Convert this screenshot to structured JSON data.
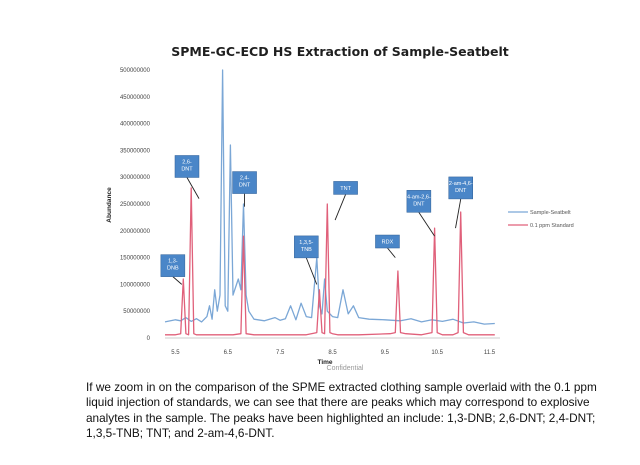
{
  "chart_data": {
    "type": "line",
    "title": "SPME-GC-ECD HS Extraction of Sample-Seatbelt",
    "xlabel": "Time",
    "ylabel": "Abundance",
    "xlim": [
      5.3,
      11.7
    ],
    "ylim": [
      0,
      500000000
    ],
    "x_ticks": [
      "5.5",
      "6.5",
      "7.5",
      "8.5",
      "9.5",
      "10.5",
      "11.5"
    ],
    "y_ticks": [
      "0",
      "50000000",
      "100000000",
      "150000000",
      "200000000",
      "250000000",
      "300000000",
      "350000000",
      "400000000",
      "450000000",
      "500000000"
    ],
    "legend_position": "right",
    "grid": false,
    "series": [
      {
        "name": "Sample-Seatbelt",
        "color": "#7ba7d6",
        "x": [
          5.3,
          5.5,
          5.6,
          5.7,
          5.8,
          5.9,
          6.0,
          6.1,
          6.15,
          6.2,
          6.25,
          6.3,
          6.35,
          6.4,
          6.45,
          6.5,
          6.55,
          6.6,
          6.7,
          6.75,
          6.8,
          6.85,
          6.9,
          7.0,
          7.2,
          7.4,
          7.5,
          7.6,
          7.7,
          7.8,
          7.9,
          8.0,
          8.1,
          8.2,
          8.25,
          8.3,
          8.35,
          8.4,
          8.5,
          8.6,
          8.7,
          8.8,
          8.9,
          9.0,
          9.2,
          9.5,
          9.8,
          10.0,
          10.2,
          10.4,
          10.6,
          10.8,
          11.0,
          11.2,
          11.4,
          11.6
        ],
        "y": [
          30000000,
          34000000,
          32000000,
          38000000,
          31000000,
          36000000,
          30000000,
          40000000,
          60000000,
          35000000,
          90000000,
          50000000,
          80000000,
          500000000,
          60000000,
          50000000,
          360000000,
          80000000,
          110000000,
          90000000,
          250000000,
          80000000,
          50000000,
          35000000,
          32000000,
          38000000,
          33000000,
          36000000,
          60000000,
          34000000,
          65000000,
          40000000,
          38000000,
          150000000,
          60000000,
          45000000,
          110000000,
          50000000,
          40000000,
          38000000,
          90000000,
          45000000,
          60000000,
          38000000,
          35000000,
          34000000,
          32000000,
          36000000,
          30000000,
          34000000,
          31000000,
          35000000,
          28000000,
          30000000,
          26000000,
          27000000
        ]
      },
      {
        "name": "0.1 ppm Standard",
        "color": "#e0607a",
        "x": [
          5.3,
          5.5,
          5.6,
          5.65,
          5.7,
          5.75,
          5.8,
          5.85,
          5.9,
          6.0,
          6.2,
          6.4,
          6.6,
          6.75,
          6.8,
          6.85,
          7.0,
          7.2,
          7.5,
          8.0,
          8.2,
          8.25,
          8.3,
          8.35,
          8.4,
          8.45,
          8.5,
          8.6,
          9.0,
          9.6,
          9.7,
          9.75,
          9.8,
          9.9,
          10.2,
          10.4,
          10.45,
          10.5,
          10.6,
          10.8,
          10.9,
          10.95,
          11.0,
          11.1,
          11.4,
          11.6
        ],
        "y": [
          6000000,
          6000000,
          8000000,
          110000000,
          8000000,
          6000000,
          280000000,
          8000000,
          6000000,
          6000000,
          6000000,
          6000000,
          6000000,
          8000000,
          190000000,
          8000000,
          6000000,
          6000000,
          6000000,
          6000000,
          10000000,
          90000000,
          10000000,
          8000000,
          250000000,
          10000000,
          8000000,
          6000000,
          6000000,
          8000000,
          10000000,
          125000000,
          10000000,
          8000000,
          6000000,
          10000000,
          205000000,
          10000000,
          6000000,
          6000000,
          10000000,
          235000000,
          10000000,
          6000000,
          6000000,
          6000000
        ]
      }
    ],
    "annotations": [
      {
        "label": "2,6-\nDNT",
        "ax": 5.72,
        "ay": 320000000,
        "tx": 5.95,
        "ty": 260000000
      },
      {
        "label": "1,3-\nDNB",
        "ax": 5.45,
        "ay": 135000000,
        "tx": 5.62,
        "ty": 100000000
      },
      {
        "label": "2,4-\nDNT",
        "ax": 6.82,
        "ay": 290000000,
        "tx": 6.82,
        "ty": 245000000
      },
      {
        "label": "1,3,5-\nTNB",
        "ax": 8.0,
        "ay": 170000000,
        "tx": 8.2,
        "ty": 100000000
      },
      {
        "label": "TNT",
        "ax": 8.75,
        "ay": 280000000,
        "tx": 8.55,
        "ty": 220000000
      },
      {
        "label": "RDX",
        "ax": 9.55,
        "ay": 180000000,
        "tx": 9.7,
        "ty": 150000000
      },
      {
        "label": "4-am-2,6-\nDNT",
        "ax": 10.15,
        "ay": 255000000,
        "tx": 10.45,
        "ty": 190000000
      },
      {
        "label": "2-am-4,6-\nDNT",
        "ax": 10.95,
        "ay": 280000000,
        "tx": 10.85,
        "ty": 205000000
      }
    ]
  },
  "caption": "If we zoom in on the comparison of the SPME extracted clothing sample overlaid with the 0.1 ppm liquid injection of standards, we can see that there are peaks which may correspond to explosive analytes in the sample. The peaks have been highlighted an include: 1,3-DNB; 2,6-DNT; 2,4-DNT; 1,3,5-TNB; TNT; and 2-am-4,6-DNT.",
  "footer_mark": "Confidential"
}
